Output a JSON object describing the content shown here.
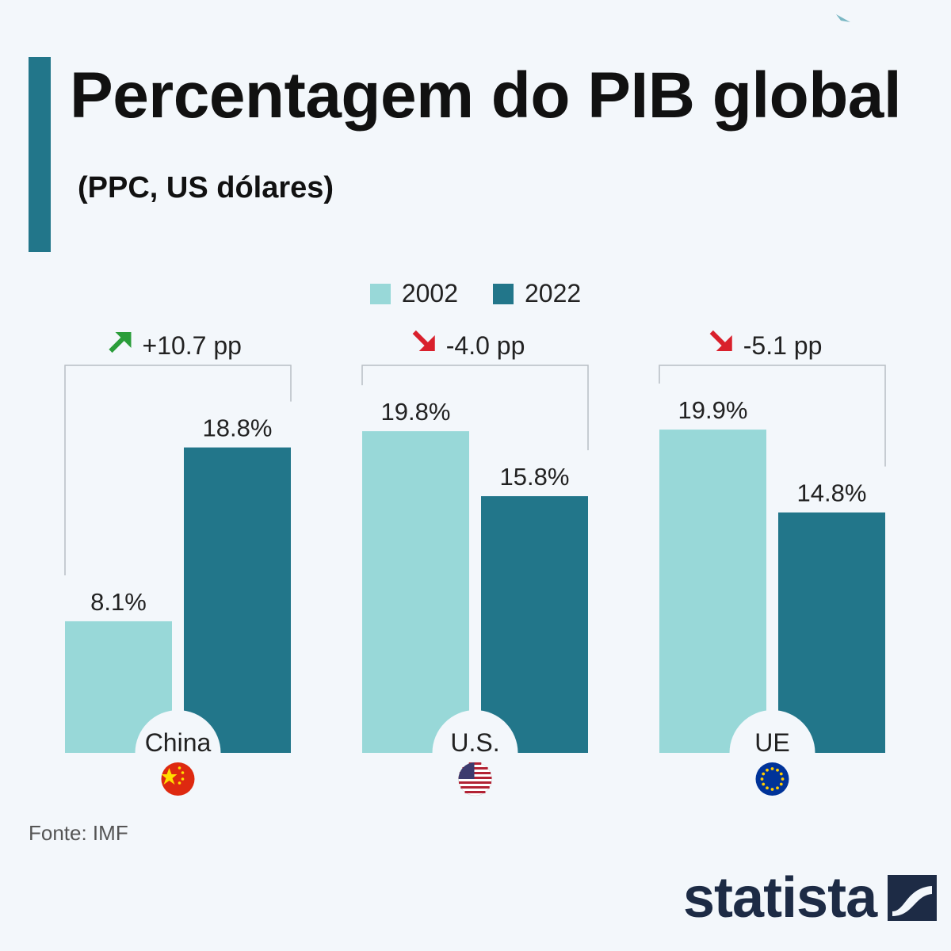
{
  "header": {
    "title": "Percentagem do PIB global",
    "subtitle": "(PPC, US dólares)"
  },
  "legend": [
    {
      "label": "2002",
      "color": "#98d8d8"
    },
    {
      "label": "2022",
      "color": "#22768a"
    }
  ],
  "footer": {
    "source": "Fonte: IMF",
    "brand": "statista"
  },
  "chart_data": {
    "type": "bar",
    "title": "Percentagem do PIB global",
    "subtitle": "(PPC, US dólares)",
    "categories": [
      "China",
      "U.S.",
      "UE"
    ],
    "series": [
      {
        "name": "2002",
        "values": [
          8.1,
          19.8,
          19.9
        ],
        "labels": [
          "8.1%",
          "19.8%",
          "19.9%"
        ],
        "color": "#98d8d8"
      },
      {
        "name": "2022",
        "values": [
          18.8,
          15.8,
          14.8
        ],
        "labels": [
          "18.8%",
          "15.8%",
          "14.8%"
        ],
        "color": "#22768a"
      }
    ],
    "changes": [
      {
        "text": "+10.7 pp",
        "direction": "up",
        "color": "#2a9d3a"
      },
      {
        "text": "-4.0 pp",
        "direction": "down",
        "color": "#d9202c"
      },
      {
        "text": "-5.1 pp",
        "direction": "down",
        "color": "#d9202c"
      }
    ],
    "flags": [
      "china-flag-icon",
      "us-flag-icon",
      "eu-flag-icon"
    ],
    "ylim": [
      0,
      24
    ],
    "grid": false,
    "legend_position": "top-center"
  }
}
